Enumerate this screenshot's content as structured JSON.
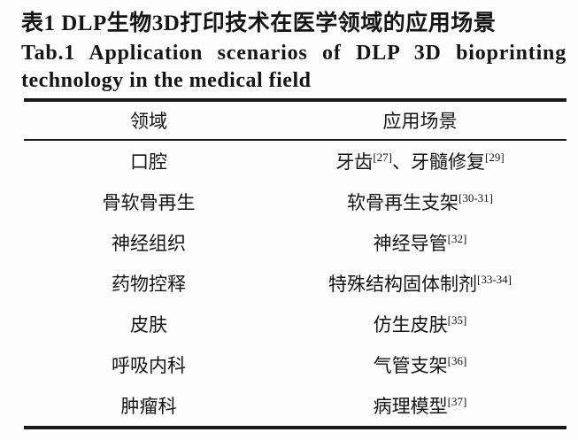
{
  "title": {
    "zh": "表1 DLP生物3D打印技术在医学领域的应用场景",
    "en_line1": "Tab.1 Application scenarios of DLP 3D bioprinting",
    "en_line2": "technology in the medical field"
  },
  "table": {
    "headers": [
      "领域",
      "应用场景"
    ],
    "rows": [
      {
        "field": "口腔",
        "scenario": [
          {
            "text": "牙齿",
            "ref": "[27]"
          },
          {
            "text": "、牙髓修复",
            "ref": "[29]"
          }
        ]
      },
      {
        "field": "骨软骨再生",
        "scenario": [
          {
            "text": "软骨再生支架",
            "ref": "[30-31]"
          }
        ]
      },
      {
        "field": "神经组织",
        "scenario": [
          {
            "text": "神经导管",
            "ref": "[32]"
          }
        ]
      },
      {
        "field": "药物控释",
        "scenario": [
          {
            "text": "特殊结构固体制剂",
            "ref": "[33-34]"
          }
        ]
      },
      {
        "field": "皮肤",
        "scenario": [
          {
            "text": "仿生皮肤",
            "ref": "[35]"
          }
        ]
      },
      {
        "field": "呼吸内科",
        "scenario": [
          {
            "text": "气管支架",
            "ref": "[36]"
          }
        ]
      },
      {
        "field": "肿瘤科",
        "scenario": [
          {
            "text": "病理模型",
            "ref": "[37]"
          }
        ]
      }
    ]
  },
  "colors": {
    "text": "#151515",
    "rule": "#1a1a1a",
    "background": "#fdfdfd"
  }
}
